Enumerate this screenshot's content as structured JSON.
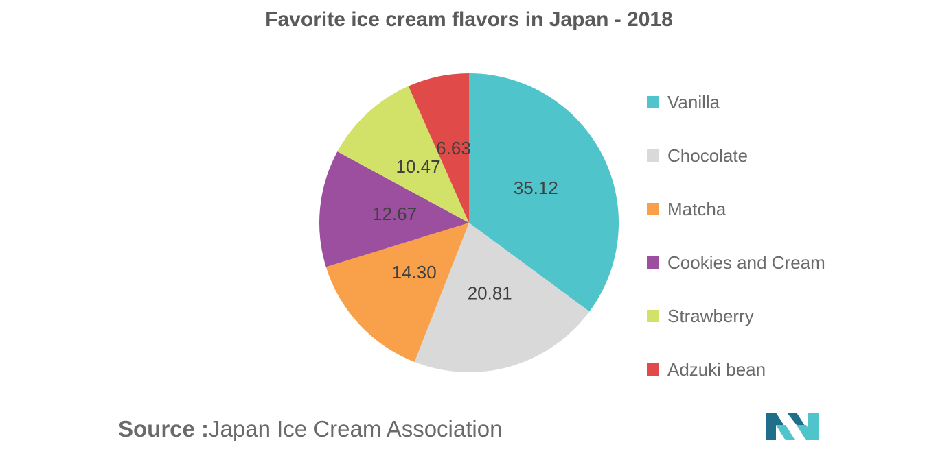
{
  "chart_data": {
    "type": "pie",
    "title": "Favorite ice cream flavors in Japan - 2018",
    "categories": [
      "Vanilla",
      "Chocolate",
      "Matcha",
      "Cookies and Cream",
      "Strawberry",
      "Adzuki bean"
    ],
    "values": [
      35.12,
      20.81,
      14.3,
      12.67,
      10.47,
      6.63
    ],
    "value_labels": [
      "35.12",
      "20.81",
      "14.30",
      "12.67",
      "10.47",
      "6.63"
    ],
    "colors": [
      "#4fc4cb",
      "#d9d9d9",
      "#f9a14a",
      "#9b4f9e",
      "#d2e167",
      "#e04b4a"
    ],
    "start_angle": "12 o'clock",
    "direction": "clockwise",
    "legend_position": "right"
  },
  "source": {
    "prefix": "Source :",
    "text": "Japan Ice Cream Association"
  },
  "logo": {
    "icon": "mordor-intelligence-logo-icon",
    "colors": [
      "#1f6f8b",
      "#4fc4cb"
    ]
  }
}
